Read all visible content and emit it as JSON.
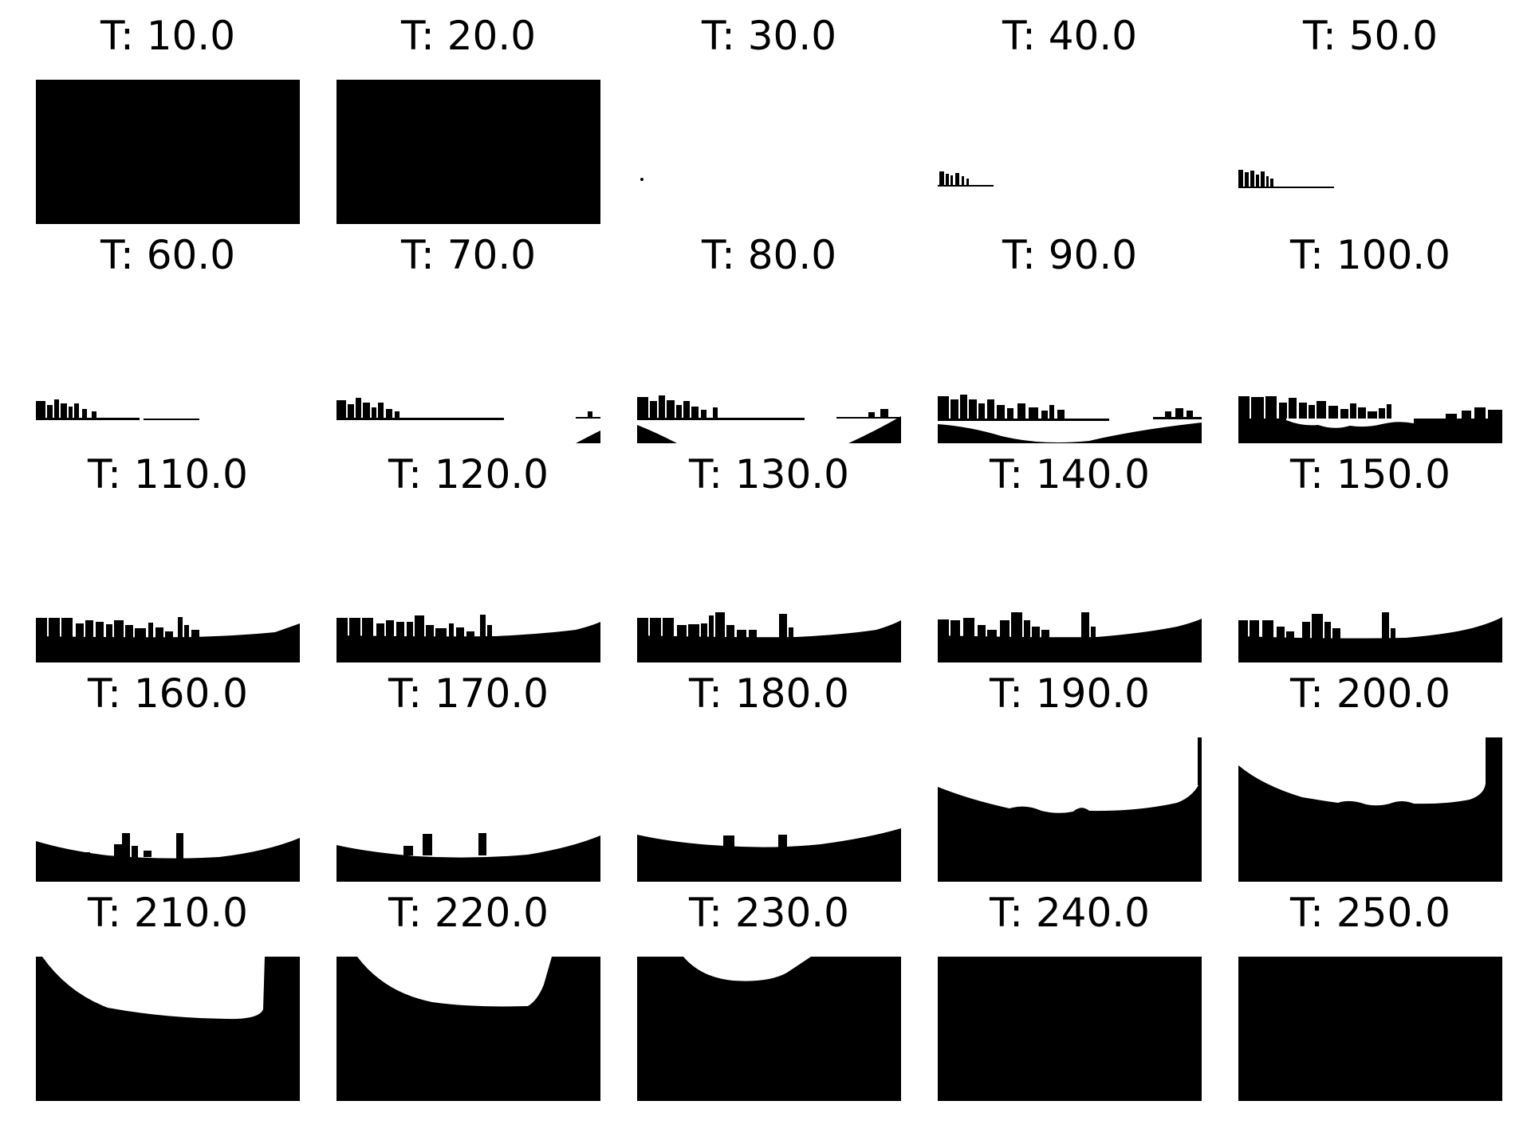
{
  "figure": {
    "prefix": "T: ",
    "panels": [
      {
        "label": "T: 10.0",
        "threshold": 10.0,
        "mask": "all-black"
      },
      {
        "label": "T: 20.0",
        "threshold": 20.0,
        "mask": "all-black"
      },
      {
        "label": "T: 30.0",
        "threshold": 30.0,
        "mask": "almost-all-white"
      },
      {
        "label": "T: 40.0",
        "threshold": 40.0,
        "mask": "faint-skyline"
      },
      {
        "label": "T: 50.0",
        "threshold": 50.0,
        "mask": "faint-skyline"
      },
      {
        "label": "T: 60.0",
        "threshold": 60.0,
        "mask": "skyline-strip"
      },
      {
        "label": "T: 70.0",
        "threshold": 70.0,
        "mask": "skyline-strip-corner"
      },
      {
        "label": "T: 80.0",
        "threshold": 80.0,
        "mask": "skyline-with-bowl"
      },
      {
        "label": "T: 90.0",
        "threshold": 90.0,
        "mask": "skyline-with-bowl"
      },
      {
        "label": "T: 100.0",
        "threshold": 100.0,
        "mask": "skyline-filled-water"
      },
      {
        "label": "T: 110.0",
        "threshold": 110.0,
        "mask": "solid-skyline"
      },
      {
        "label": "T: 120.0",
        "threshold": 120.0,
        "mask": "solid-skyline"
      },
      {
        "label": "T: 130.0",
        "threshold": 130.0,
        "mask": "solid-skyline"
      },
      {
        "label": "T: 140.0",
        "threshold": 140.0,
        "mask": "solid-skyline"
      },
      {
        "label": "T: 150.0",
        "threshold": 150.0,
        "mask": "solid-skyline"
      },
      {
        "label": "T: 160.0",
        "threshold": 160.0,
        "mask": "low-skyline"
      },
      {
        "label": "T: 170.0",
        "threshold": 170.0,
        "mask": "low-skyline"
      },
      {
        "label": "T: 180.0",
        "threshold": 180.0,
        "mask": "dome"
      },
      {
        "label": "T: 190.0",
        "threshold": 190.0,
        "mask": "dome"
      },
      {
        "label": "T: 200.0",
        "threshold": 200.0,
        "mask": "dome"
      },
      {
        "label": "T: 210.0",
        "threshold": 210.0,
        "mask": "white-bowl"
      },
      {
        "label": "T: 220.0",
        "threshold": 220.0,
        "mask": "white-bowl"
      },
      {
        "label": "T: 230.0",
        "threshold": 230.0,
        "mask": "white-cap"
      },
      {
        "label": "T: 240.0",
        "threshold": 240.0,
        "mask": "all-black"
      },
      {
        "label": "T: 250.0",
        "threshold": 250.0,
        "mask": "all-black"
      }
    ]
  },
  "colors": {
    "foreground": "#000000",
    "background": "#ffffff"
  }
}
